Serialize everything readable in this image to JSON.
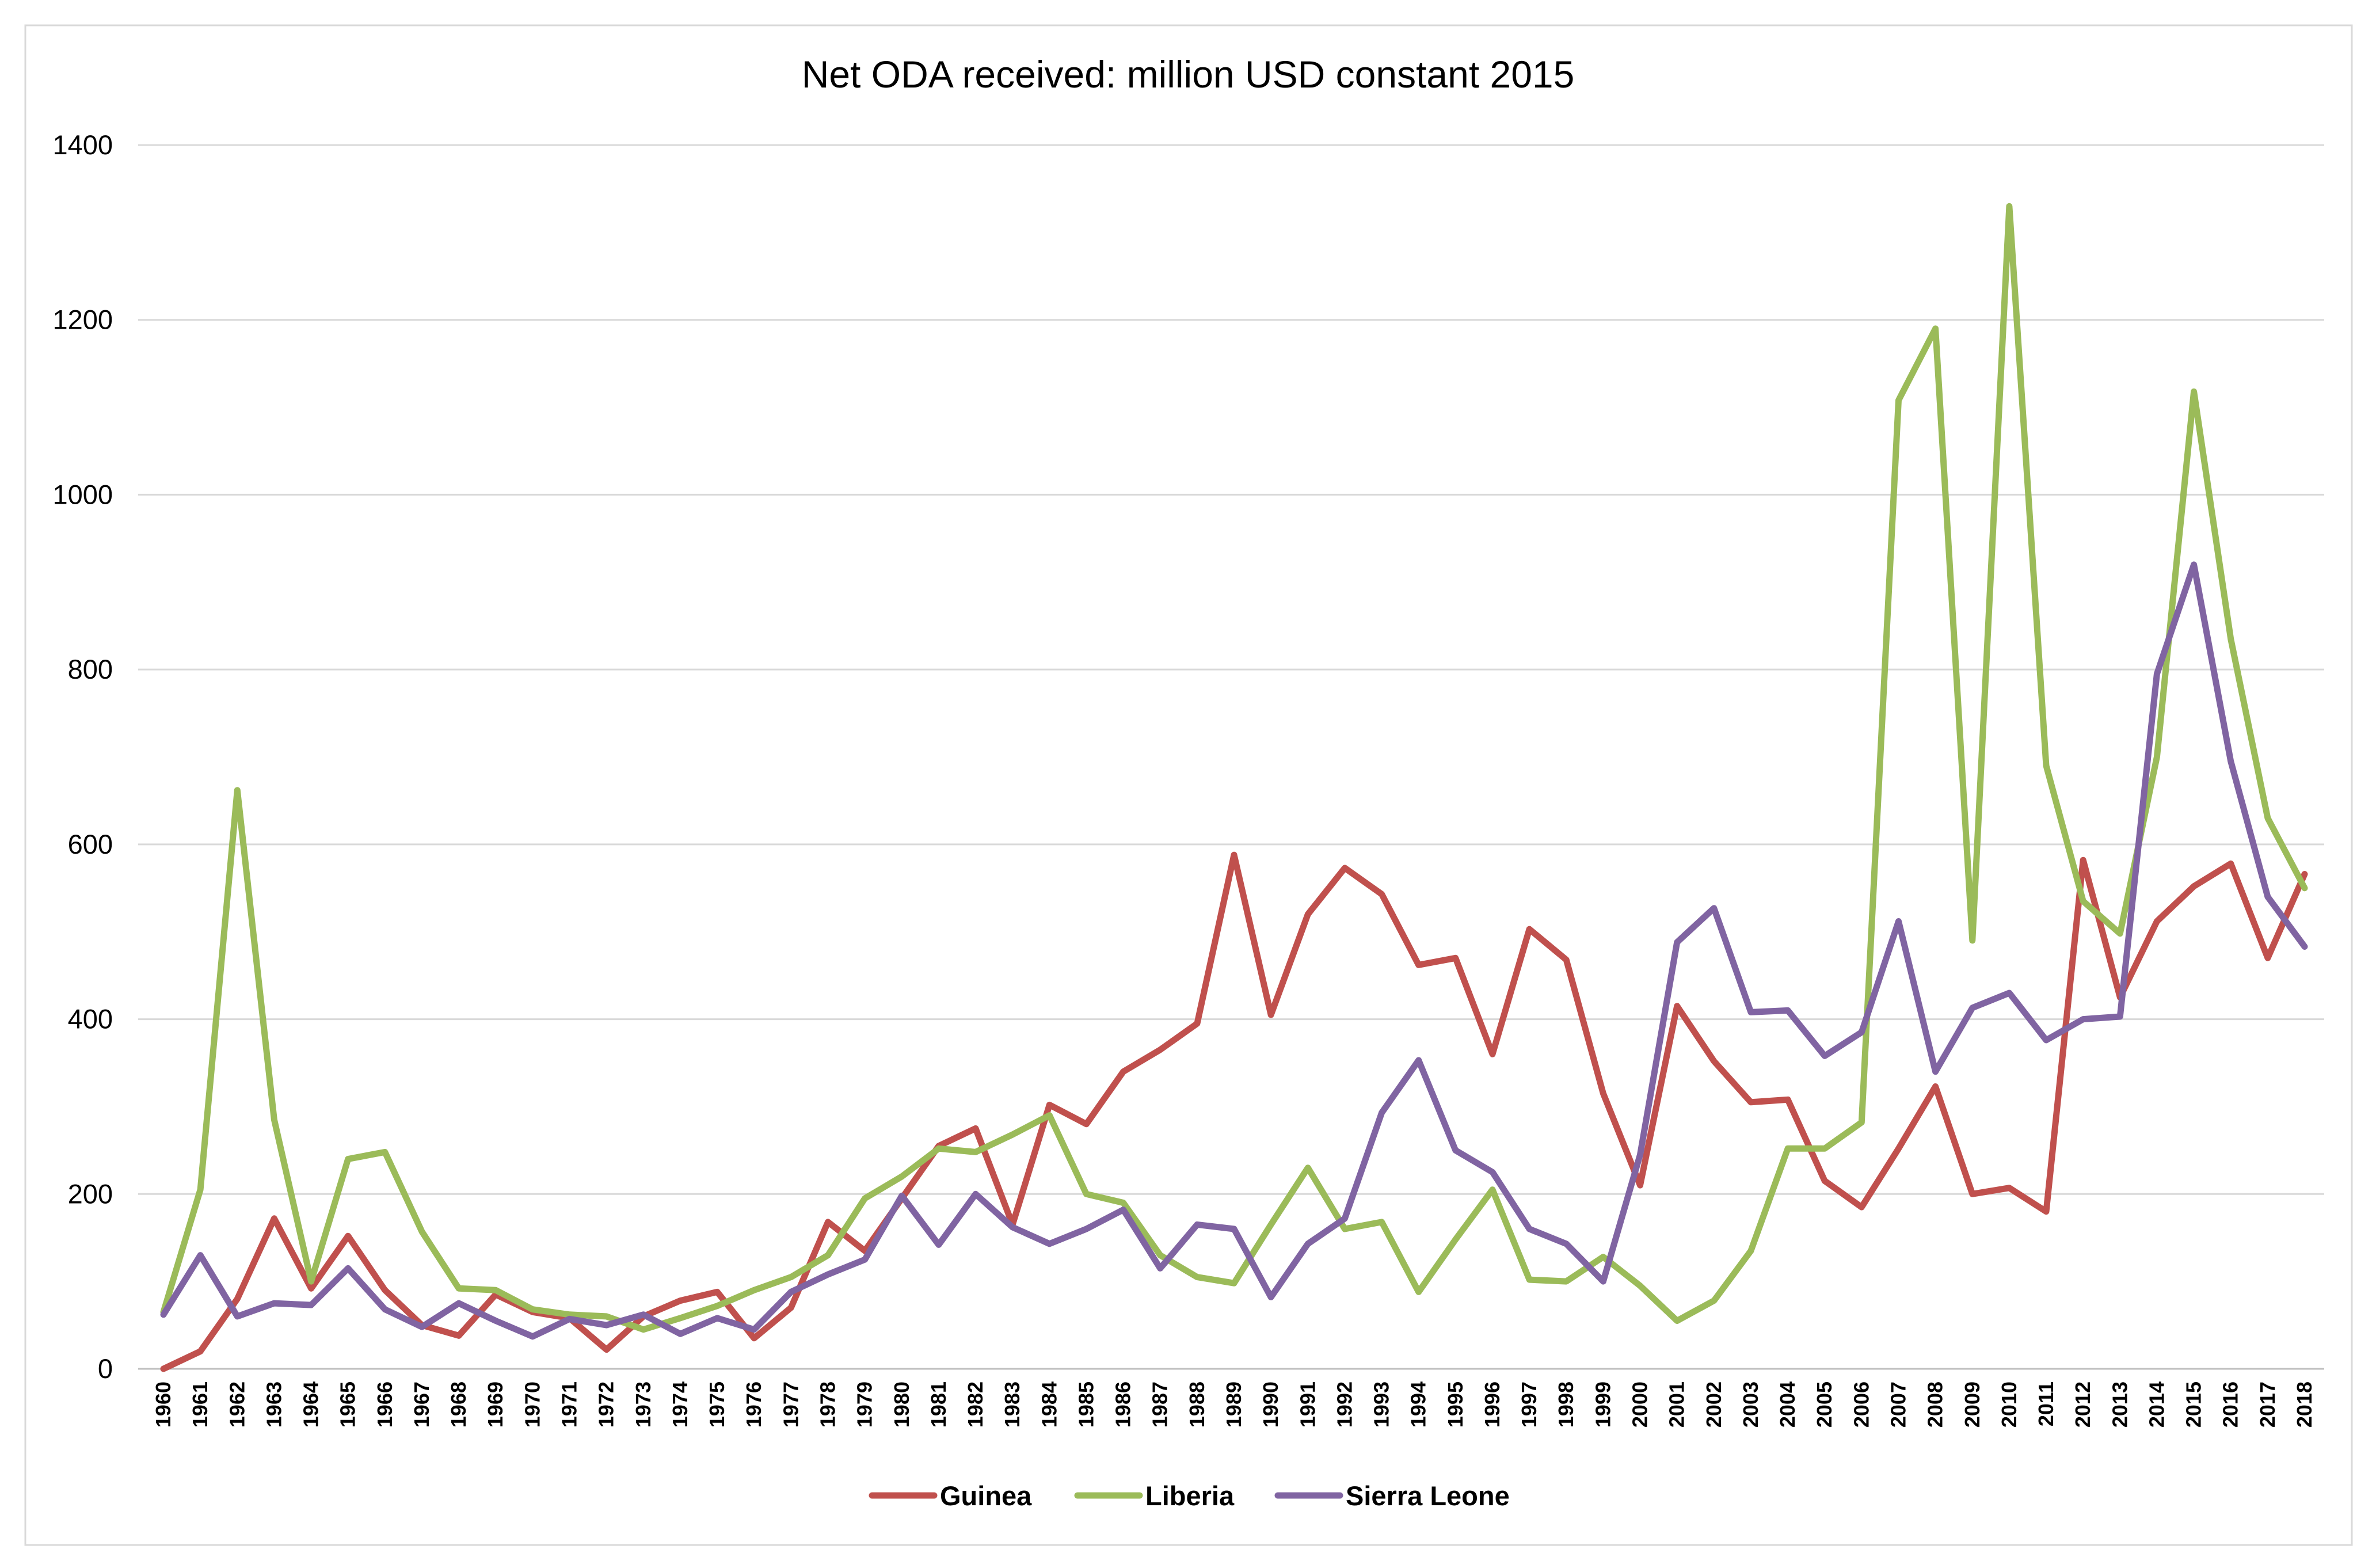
{
  "chart_data": {
    "type": "line",
    "title": "Net ODA received: million USD constant 2015",
    "xlabel": "",
    "ylabel": "",
    "ylim": [
      0,
      1400
    ],
    "y_ticks": [
      0,
      200,
      400,
      600,
      800,
      1000,
      1200,
      1400
    ],
    "grid": true,
    "legend_position": "bottom",
    "x": [
      "1960",
      "1961",
      "1962",
      "1963",
      "1964",
      "1965",
      "1966",
      "1967",
      "1968",
      "1969",
      "1970",
      "1971",
      "1972",
      "1973",
      "1974",
      "1975",
      "1976",
      "1977",
      "1978",
      "1979",
      "1980",
      "1981",
      "1982",
      "1983",
      "1984",
      "1985",
      "1986",
      "1987",
      "1988",
      "1989",
      "1990",
      "1991",
      "1992",
      "1993",
      "1994",
      "1995",
      "1996",
      "1997",
      "1998",
      "1999",
      "2000",
      "2001",
      "2002",
      "2003",
      "2004",
      "2005",
      "2006",
      "2007",
      "2008",
      "2009",
      "2010",
      "2011",
      "2012",
      "2013",
      "2014",
      "2015",
      "2016",
      "2017",
      "2018"
    ],
    "series": [
      {
        "name": "Guinea",
        "color": "#c0504d",
        "values": [
          0,
          20,
          80,
          172,
          92,
          152,
          90,
          50,
          38,
          85,
          65,
          58,
          22,
          60,
          78,
          88,
          35,
          70,
          168,
          135,
          195,
          255,
          275,
          165,
          302,
          280,
          340,
          365,
          395,
          588,
          405,
          520,
          573,
          543,
          462,
          470,
          360,
          503,
          468,
          315,
          210,
          415,
          352,
          305,
          308,
          215,
          185,
          252,
          323,
          200,
          207,
          180,
          582,
          425,
          512,
          552,
          578,
          470,
          566
        ]
      },
      {
        "name": "Liberia",
        "color": "#9bbb59",
        "values": [
          65,
          205,
          662,
          285,
          100,
          240,
          248,
          157,
          92,
          90,
          68,
          62,
          60,
          45,
          58,
          72,
          90,
          105,
          130,
          195,
          220,
          252,
          248,
          268,
          290,
          200,
          190,
          130,
          105,
          98,
          165,
          230,
          160,
          168,
          88,
          148,
          205,
          102,
          100,
          128,
          95,
          55,
          78,
          135,
          252,
          252,
          282,
          1108,
          1190,
          490,
          1330,
          690,
          535,
          498,
          700,
          1118,
          835,
          630,
          550
        ]
      },
      {
        "name": "Sierra Leone",
        "color": "#8064a2",
        "values": [
          62,
          130,
          60,
          75,
          73,
          115,
          68,
          48,
          75,
          55,
          37,
          57,
          50,
          62,
          40,
          58,
          45,
          88,
          108,
          125,
          198,
          142,
          200,
          162,
          143,
          160,
          182,
          115,
          165,
          160,
          82,
          143,
          172,
          293,
          353,
          250,
          225,
          160,
          143,
          100,
          245,
          488,
          527,
          408,
          410,
          358,
          385,
          512,
          340,
          413,
          430,
          376,
          400,
          403,
          795,
          920,
          695,
          540,
          483
        ]
      }
    ]
  }
}
